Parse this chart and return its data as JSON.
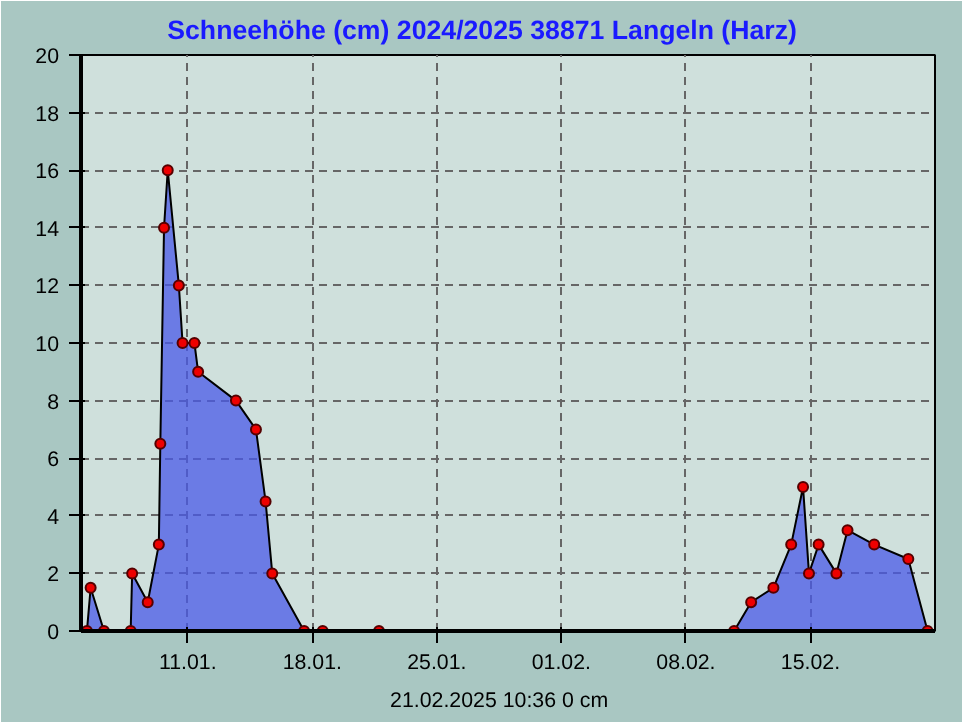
{
  "chart_data": {
    "type": "area",
    "title": "Schneehöhe (cm)  2024/2025       38871 Langeln (Harz)",
    "annotations": [
      "21.02.2025  10:36   0 cm"
    ],
    "x": [
      "2025-01-05T08:00",
      "2025-01-05T13:00",
      "2025-01-06T07:00",
      "2025-01-07T19:00",
      "2025-01-07T21:00",
      "2025-01-08T18:00",
      "2025-01-09T09:00",
      "2025-01-09T11:00",
      "2025-01-09T16:00",
      "2025-01-09T21:00",
      "2025-01-10T12:00",
      "2025-01-10T17:00",
      "2025-01-11T09:00",
      "2025-01-11T14:00",
      "2025-01-13T17:00",
      "2025-01-14T20:00",
      "2025-01-15T09:00",
      "2025-01-15T18:00",
      "2025-01-17T13:00",
      "2025-01-18T14:00",
      "2025-01-21T18:00",
      "2025-02-10T17:00",
      "2025-02-11T16:00",
      "2025-02-12T22:00",
      "2025-02-13T22:00",
      "2025-02-14T14:00",
      "2025-02-14T22:00",
      "2025-02-15T11:00",
      "2025-02-16T11:00",
      "2025-02-17T02:00",
      "2025-02-18T14:00",
      "2025-02-20T12:00",
      "2025-02-21T14:00"
    ],
    "series": [
      {
        "color": "#4a5ae8",
        "values": [
          0,
          1.5,
          0,
          0,
          2,
          1,
          3,
          6.5,
          14,
          16,
          12,
          10,
          10,
          9,
          8,
          7,
          4.5,
          2,
          0,
          0,
          0,
          0,
          1,
          1.5,
          3,
          5,
          2,
          3,
          2,
          3.5,
          3,
          2.5,
          0
        ]
      }
    ],
    "xlim": [
      "2025-01-05",
      "2025-02-22"
    ],
    "xticks": [
      {
        "value": "2025-01-11",
        "label": "11.01."
      },
      {
        "value": "2025-01-18",
        "label": "18.01."
      },
      {
        "value": "2025-01-25",
        "label": "25.01."
      },
      {
        "value": "2025-02-01",
        "label": "01.02."
      },
      {
        "value": "2025-02-08",
        "label": "08.02."
      },
      {
        "value": "2025-02-15",
        "label": "15.02."
      }
    ],
    "ylim": [
      0,
      20
    ],
    "yticks": [
      0,
      2,
      4,
      6,
      8,
      10,
      12,
      14,
      16,
      18,
      20
    ],
    "grid": true,
    "marker": "circle",
    "line_style": "solid"
  }
}
